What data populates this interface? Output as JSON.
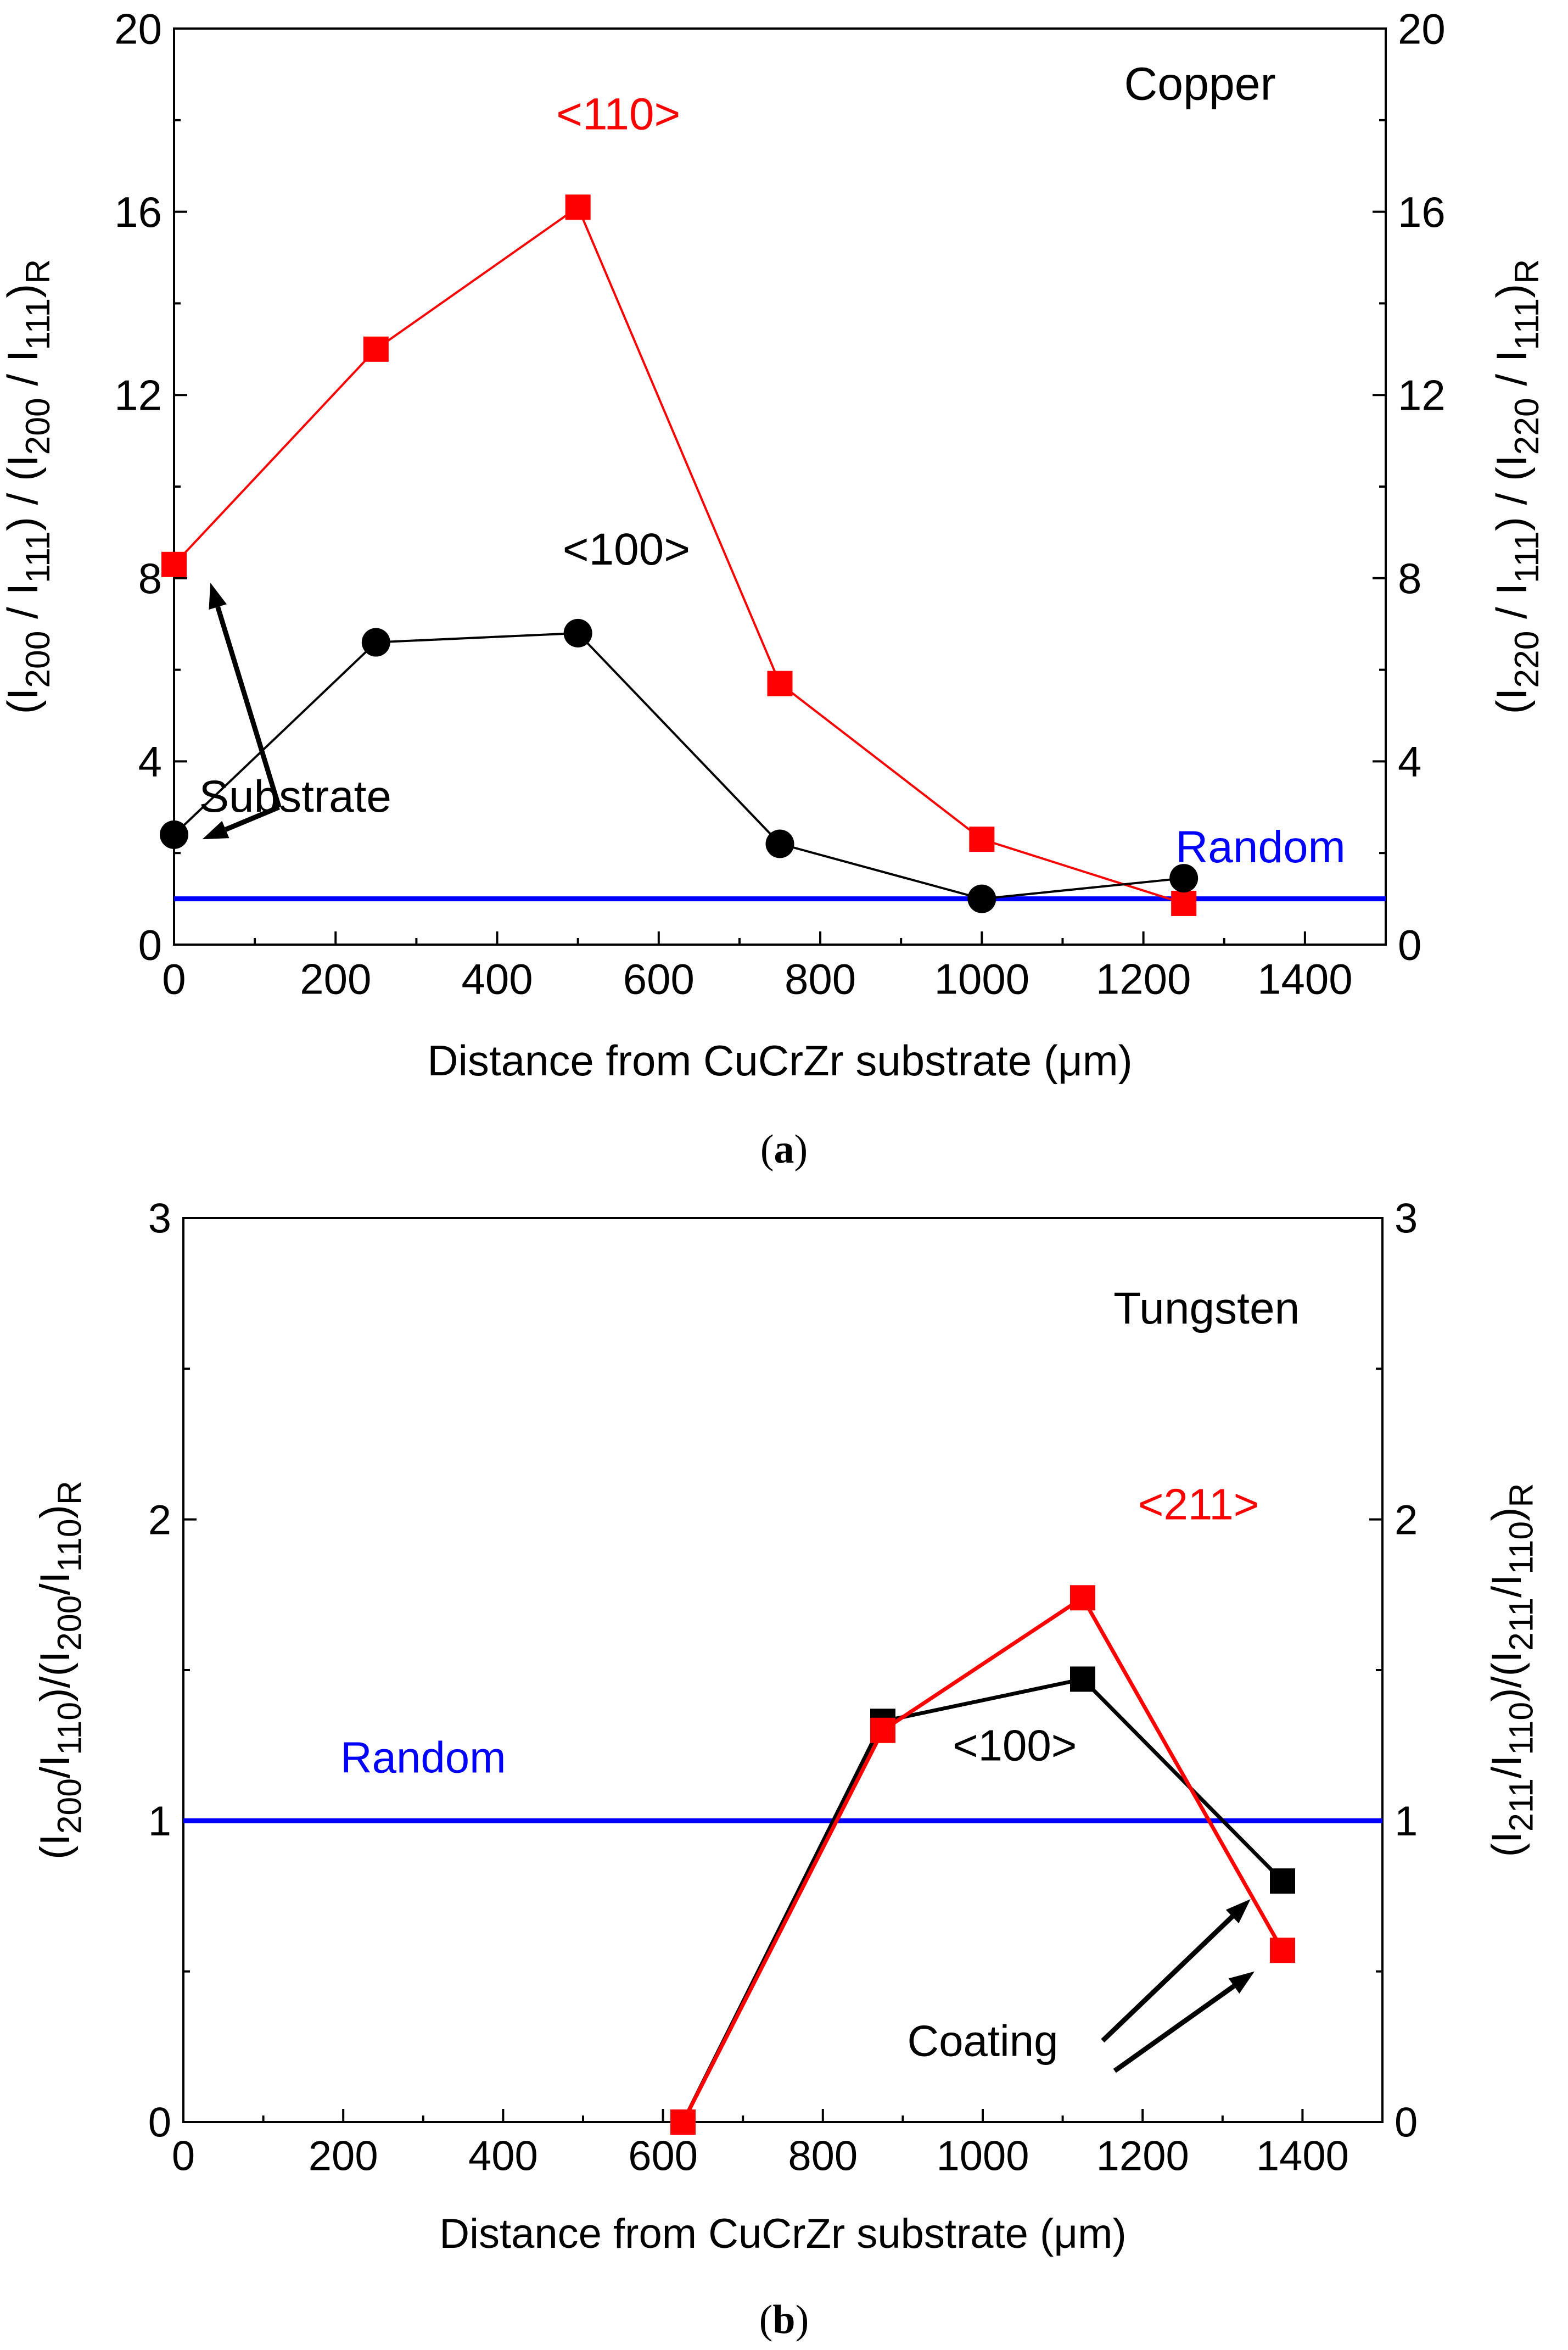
{
  "chart_data": [
    {
      "type": "line",
      "panel": "a",
      "caption_letter": "a",
      "title": "Copper",
      "xlabel": "Distance from CuCrZr substrate (μm)",
      "ylabel_left": [
        "(I",
        "200",
        " / I",
        "111",
        ") / (I",
        "200",
        " / I",
        "111",
        ")",
        "R"
      ],
      "ylabel_right": [
        "(I",
        "220",
        " / I",
        "111",
        ") / (I",
        "220",
        " / I",
        "111",
        ")",
        "R"
      ],
      "xlim": [
        0,
        1500
      ],
      "ylim": [
        0,
        20
      ],
      "xticks": [
        0,
        200,
        400,
        600,
        800,
        1000,
        1200,
        1400
      ],
      "yticks": [
        0,
        4,
        8,
        12,
        16,
        20
      ],
      "series": [
        {
          "name": "<110>",
          "color": "#ff0000",
          "marker": "square",
          "x": [
            0,
            250,
            500,
            750,
            1000,
            1250
          ],
          "y": [
            8.3,
            13.0,
            16.1,
            5.7,
            2.3,
            0.9
          ]
        },
        {
          "name": "<100>",
          "color": "#000000",
          "marker": "circle",
          "x": [
            0,
            250,
            500,
            750,
            1000,
            1250
          ],
          "y": [
            2.4,
            6.6,
            6.8,
            2.2,
            1.0,
            1.45
          ]
        }
      ],
      "reference_line": {
        "name": "Random",
        "y": 1.0,
        "color": "#0000ff"
      },
      "annotations": [
        {
          "text": "<110>",
          "color": "#ff0000",
          "x": 550,
          "y": 17.8
        },
        {
          "text": "<100>",
          "color": "#000000",
          "x": 560,
          "y": 8.3
        },
        {
          "text": "Random",
          "color": "#0000ff",
          "x": 1345,
          "y": 1.8
        },
        {
          "text": "Substrate",
          "color": "#000000",
          "x": 150,
          "y": 2.9,
          "arrows": [
            {
              "from": [
                130,
                3.0
              ],
              "to": [
                45,
                7.9
              ]
            },
            {
              "from": [
                130,
                3.0
              ],
              "to": [
                35,
                2.3
              ]
            }
          ]
        }
      ]
    },
    {
      "type": "line",
      "panel": "b",
      "caption_letter": "b",
      "title": "Tungsten",
      "xlabel": "Distance from CuCrZr substrate (μm)",
      "ylabel_left": [
        "(I",
        "200",
        "/I",
        "110",
        ")/(I",
        "200",
        "/I",
        "110",
        ")",
        "R"
      ],
      "ylabel_right": [
        "(I",
        "211",
        "/I",
        "110",
        ")/(I",
        "211",
        "/I",
        "110",
        ")",
        "R"
      ],
      "xlim": [
        0,
        1500
      ],
      "ylim": [
        0,
        3
      ],
      "xticks": [
        0,
        200,
        400,
        600,
        800,
        1000,
        1200,
        1400
      ],
      "yticks": [
        0,
        1,
        2,
        3
      ],
      "series": [
        {
          "name": "<100>",
          "color": "#000000",
          "marker": "square",
          "x": [
            625,
            875,
            1125,
            1375
          ],
          "y": [
            0.0,
            1.33,
            1.47,
            0.8
          ]
        },
        {
          "name": "<211>",
          "color": "#ff0000",
          "marker": "square",
          "x": [
            625,
            875,
            1125,
            1375
          ],
          "y": [
            0.0,
            1.3,
            1.74,
            0.57
          ]
        }
      ],
      "reference_line": {
        "name": "Random",
        "y": 1.0,
        "color": "#0000ff"
      },
      "annotations": [
        {
          "text": "<211>",
          "color": "#ff0000",
          "x": 1270,
          "y": 2.0
        },
        {
          "text": "<100>",
          "color": "#000000",
          "x": 1040,
          "y": 1.2
        },
        {
          "text": "Random",
          "color": "#0000ff",
          "x": 300,
          "y": 1.16
        },
        {
          "text": "Coating",
          "color": "#000000",
          "x": 1000,
          "y": 0.22,
          "arrows": [
            {
              "from": [
                1150,
                0.27
              ],
              "to": [
                1335,
                0.74
              ]
            },
            {
              "from": [
                1165,
                0.17
              ],
              "to": [
                1340,
                0.5
              ]
            }
          ]
        }
      ]
    }
  ]
}
